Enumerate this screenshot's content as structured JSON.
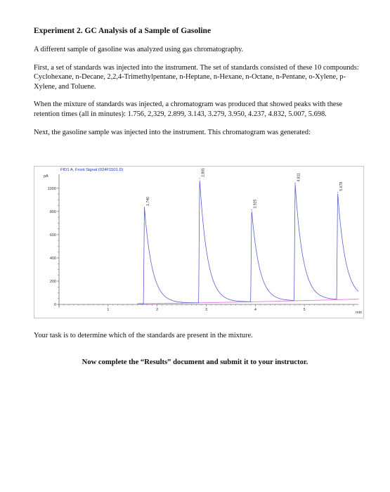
{
  "document": {
    "title": "Experiment 2. GC Analysis of a Sample of Gasoline",
    "paragraphs": [
      "A different sample of gasoline was analyzed using gas chromatography.",
      "First, a set of standards was injected into the instrument. The set of standards consisted of these 10 compounds: Cyclohexane, n-Decane, 2,2,4-Trimethylpentane, n-Heptane, n-Hexane, n-Octane, n-Pentane, o-Xylene, p-Xylene, and Toluene.",
      "When the mixture of standards was injected, a chromatogram was produced that showed peaks with these retention times (all in minutes): 1.756,  2,329, 2.899, 3.143, 3.279, 3.950, 4.237, 4.832, 5.007, 5.698.",
      "Next, the gasoline sample was injected into the instrument. This chromatogram was generated:"
    ],
    "task": "Your task is to determine which of the standards are present in the mixture.",
    "final_instruction": "Now complete the “Results” document and submit it to your instructor."
  },
  "chart_data": {
    "type": "line",
    "signal_label": "FID1 A, Front Signal (024F1501.D)",
    "ylabel": "pA",
    "xlabel": "min",
    "xlim": [
      0,
      6.1
    ],
    "ylim": [
      -30,
      1120
    ],
    "y_ticks": [
      0,
      200,
      400,
      600,
      800,
      1000
    ],
    "x_ticks": [
      1,
      2,
      3,
      4,
      5
    ],
    "peaks": [
      {
        "rt": 1.74,
        "label": "1.740",
        "height": 830
      },
      {
        "rt": 2.865,
        "label": "2.865",
        "height": 1070
      },
      {
        "rt": 3.925,
        "label": "3.925",
        "height": 790
      },
      {
        "rt": 4.811,
        "label": "4.811",
        "height": 1010
      },
      {
        "rt": 5.678,
        "label": "5.678",
        "height": 920
      }
    ],
    "baseline_start": 0,
    "baseline_end": 45,
    "colors": {
      "signal": "#5a5fd6",
      "baseline": "#e07ae0",
      "axis": "#555555"
    }
  }
}
